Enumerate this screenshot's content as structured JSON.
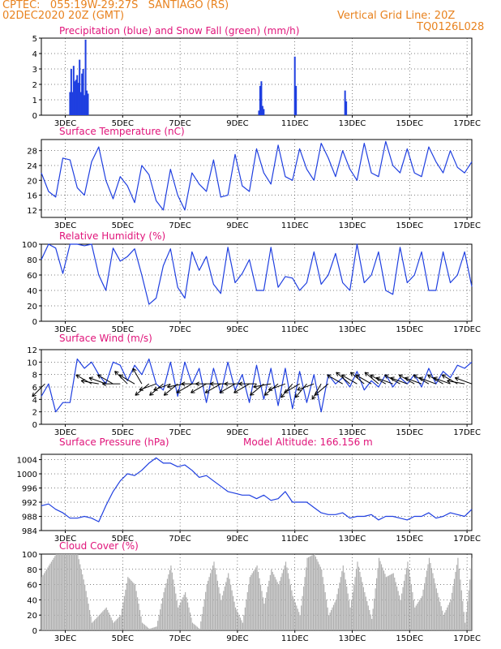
{
  "header": {
    "line1": "CPTEC:   055:19W-29:27S   SANTIAGO (RS)",
    "line2": "02DEC2020 20Z (GMT)",
    "right1": "Vertical Grid Line: 20Z",
    "right2": "TQ0126L028",
    "header_color": "#e8821e"
  },
  "colors": {
    "title": "#e0147a",
    "line": "#1f3fe0",
    "snow": "#20a020",
    "cloud": "#b0b0b0",
    "arrow": "#000000"
  },
  "x_axis": {
    "ticks": [
      "3DEC",
      "5DEC",
      "7DEC",
      "9DEC",
      "11DEC",
      "13DEC",
      "15DEC",
      "17DEC"
    ],
    "start_date": "2020-12-02T00:00Z",
    "end_date": "2020-12-17T00:00Z",
    "vertical_grid_hour": "20Z"
  },
  "chart_data": [
    {
      "id": "precip",
      "type": "bar",
      "title": "Precipitation (blue) and Snow Fall (green) (mm/h)",
      "ylim": [
        0,
        5
      ],
      "yticks": [
        0,
        1,
        2,
        3,
        4,
        5
      ],
      "series": [
        {
          "color": "#1f3fe0",
          "x": [
            "03DEC00Z",
            "03DEC01Z",
            "03DEC02Z",
            "03DEC03Z",
            "03DEC04Z",
            "03DEC05Z",
            "03DEC06Z",
            "03DEC07Z",
            "03DEC08Z",
            "03DEC09Z",
            "03DEC10Z",
            "03DEC11Z",
            "03DEC12Z",
            "03DEC13Z",
            "03DEC14Z",
            "03DEC15Z",
            "09DEC14Z",
            "09DEC15Z",
            "09DEC16Z",
            "09DEC17Z",
            "09DEC18Z",
            "10DEC20Z",
            "10DEC21Z",
            "12DEC14Z",
            "12DEC15Z"
          ],
          "values": [
            1.5,
            3.0,
            1.5,
            3.2,
            2.2,
            2.3,
            2.6,
            2.1,
            3.6,
            1.5,
            2.7,
            3.0,
            1.3,
            4.9,
            1.6,
            1.4,
            0.3,
            1.9,
            2.2,
            0.6,
            0.4,
            3.8,
            1.9,
            1.6,
            0.9
          ]
        }
      ]
    },
    {
      "id": "temperature",
      "type": "line",
      "title": "Surface Temperature (nC)",
      "ylim": [
        10,
        31
      ],
      "yticks": [
        12,
        16,
        20,
        24,
        28
      ],
      "series": [
        {
          "color": "#1f3fe0",
          "x_hours": [
            0,
            6,
            12,
            18,
            24,
            30,
            36,
            42,
            48,
            54,
            60,
            66,
            72,
            78,
            84,
            90,
            96,
            102,
            108,
            114,
            120,
            126,
            132,
            138,
            144,
            150,
            156,
            162,
            168,
            174,
            180,
            186,
            192,
            198,
            204,
            210,
            216,
            222,
            228,
            234,
            240,
            246,
            252,
            258,
            264,
            270,
            276,
            282,
            288,
            294,
            300,
            306,
            312,
            318,
            324,
            330,
            336,
            342,
            348,
            354,
            360
          ],
          "values": [
            22,
            17,
            15.5,
            26,
            25.5,
            18,
            16,
            25,
            29,
            20,
            15,
            21,
            18.5,
            14,
            24,
            21.5,
            14.5,
            12,
            23,
            16,
            12,
            22,
            19,
            17,
            25.5,
            15.5,
            16,
            27,
            18.5,
            17,
            28.5,
            22,
            19,
            29.5,
            21,
            20,
            28.5,
            23,
            20,
            30,
            26,
            21,
            28,
            23,
            20,
            30,
            22,
            21,
            30.5,
            24,
            22,
            28.5,
            22,
            21,
            29,
            25,
            22,
            28,
            23.5,
            22,
            25
          ]
        }
      ]
    },
    {
      "id": "humidity",
      "type": "line",
      "title": "Relative Humidity (%)",
      "ylim": [
        0,
        100
      ],
      "yticks": [
        0,
        20,
        40,
        60,
        80,
        100
      ],
      "series": [
        {
          "color": "#1f3fe0",
          "x_hours": [
            0,
            6,
            12,
            18,
            24,
            30,
            36,
            42,
            48,
            54,
            60,
            66,
            72,
            78,
            84,
            90,
            96,
            102,
            108,
            114,
            120,
            126,
            132,
            138,
            144,
            150,
            156,
            162,
            168,
            174,
            180,
            186,
            192,
            198,
            204,
            210,
            216,
            222,
            228,
            234,
            240,
            246,
            252,
            258,
            264,
            270,
            276,
            282,
            288,
            294,
            300,
            306,
            312,
            318,
            324,
            330,
            336,
            342,
            348,
            354,
            360
          ],
          "values": [
            80,
            100,
            95,
            62,
            100,
            100,
            98,
            100,
            60,
            40,
            95,
            78,
            84,
            94,
            60,
            22,
            30,
            72,
            94,
            44,
            30,
            90,
            66,
            84,
            48,
            36,
            96,
            50,
            62,
            80,
            40,
            40,
            96,
            44,
            58,
            56,
            40,
            50,
            90,
            48,
            60,
            88,
            50,
            40,
            100,
            50,
            60,
            90,
            40,
            35,
            96,
            50,
            60,
            90,
            40,
            40,
            90,
            50,
            60,
            90,
            45
          ]
        }
      ]
    },
    {
      "id": "wind",
      "type": "line",
      "title": "Surface Wind (m/s)",
      "ylim": [
        0,
        12
      ],
      "yticks": [
        0,
        2,
        4,
        6,
        8,
        10,
        12
      ],
      "series": [
        {
          "color": "#1f3fe0",
          "x_hours": [
            0,
            6,
            12,
            18,
            24,
            30,
            36,
            42,
            48,
            54,
            60,
            66,
            72,
            78,
            84,
            90,
            96,
            102,
            108,
            114,
            120,
            126,
            132,
            138,
            144,
            150,
            156,
            162,
            168,
            174,
            180,
            186,
            192,
            198,
            204,
            210,
            216,
            222,
            228,
            234,
            240,
            246,
            252,
            258,
            264,
            270,
            276,
            282,
            288,
            294,
            300,
            306,
            312,
            318,
            324,
            330,
            336,
            342,
            348,
            354,
            360
          ],
          "values": [
            4.5,
            6.5,
            2.0,
            3.5,
            3.5,
            10.5,
            9.0,
            10.0,
            8.0,
            6.5,
            10.0,
            9.5,
            7.0,
            9.5,
            8.0,
            10.5,
            6.5,
            5.5,
            10.0,
            4.5,
            10.0,
            6.5,
            9.0,
            3.5,
            9.0,
            5.0,
            10.0,
            5.5,
            8.0,
            3.5,
            9.5,
            4.0,
            9.0,
            3.0,
            9.0,
            2.5,
            8.5,
            3.5,
            8.0,
            2.0,
            8.0,
            6.5,
            7.5,
            6.0,
            8.5,
            5.5,
            7.0,
            6.0,
            8.0,
            6.0,
            7.5,
            6.5,
            8.0,
            6.0,
            9.0,
            6.5,
            8.5,
            7.5,
            9.5,
            9.0,
            10.0
          ]
        }
      ],
      "arrows": [
        {
          "time_hours": 3,
          "dir_deg": 225
        },
        {
          "time_hours": 42,
          "dir_deg": 300
        },
        {
          "time_hours": 48,
          "dir_deg": 280
        },
        {
          "time_hours": 54,
          "dir_deg": 290
        },
        {
          "time_hours": 60,
          "dir_deg": 300
        },
        {
          "time_hours": 66,
          "dir_deg": 270
        },
        {
          "time_hours": 72,
          "dir_deg": 315
        },
        {
          "time_hours": 78,
          "dir_deg": 300
        },
        {
          "time_hours": 84,
          "dir_deg": 330
        },
        {
          "time_hours": 90,
          "dir_deg": 230
        },
        {
          "time_hours": 96,
          "dir_deg": 250
        },
        {
          "time_hours": 102,
          "dir_deg": 230
        },
        {
          "time_hours": 108,
          "dir_deg": 250
        },
        {
          "time_hours": 114,
          "dir_deg": 230
        },
        {
          "time_hours": 120,
          "dir_deg": 260
        },
        {
          "time_hours": 126,
          "dir_deg": 240
        },
        {
          "time_hours": 132,
          "dir_deg": 270
        },
        {
          "time_hours": 138,
          "dir_deg": 240
        },
        {
          "time_hours": 144,
          "dir_deg": 270
        },
        {
          "time_hours": 150,
          "dir_deg": 240
        },
        {
          "time_hours": 156,
          "dir_deg": 270
        },
        {
          "time_hours": 162,
          "dir_deg": 240
        },
        {
          "time_hours": 168,
          "dir_deg": 270
        },
        {
          "time_hours": 174,
          "dir_deg": 240
        },
        {
          "time_hours": 180,
          "dir_deg": 270
        },
        {
          "time_hours": 186,
          "dir_deg": 230
        },
        {
          "time_hours": 192,
          "dir_deg": 260
        },
        {
          "time_hours": 198,
          "dir_deg": 230
        },
        {
          "time_hours": 204,
          "dir_deg": 250
        },
        {
          "time_hours": 210,
          "dir_deg": 220
        },
        {
          "time_hours": 216,
          "dir_deg": 240
        },
        {
          "time_hours": 222,
          "dir_deg": 220
        },
        {
          "time_hours": 228,
          "dir_deg": 250
        },
        {
          "time_hours": 234,
          "dir_deg": 210
        },
        {
          "time_hours": 240,
          "dir_deg": 230
        },
        {
          "time_hours": 252,
          "dir_deg": 300
        },
        {
          "time_hours": 258,
          "dir_deg": 310
        },
        {
          "time_hours": 264,
          "dir_deg": 300
        },
        {
          "time_hours": 270,
          "dir_deg": 310
        },
        {
          "time_hours": 276,
          "dir_deg": 300
        },
        {
          "time_hours": 282,
          "dir_deg": 310
        },
        {
          "time_hours": 288,
          "dir_deg": 300
        },
        {
          "time_hours": 294,
          "dir_deg": 290
        },
        {
          "time_hours": 300,
          "dir_deg": 300
        },
        {
          "time_hours": 306,
          "dir_deg": 290
        },
        {
          "time_hours": 312,
          "dir_deg": 300
        },
        {
          "time_hours": 318,
          "dir_deg": 290
        },
        {
          "time_hours": 324,
          "dir_deg": 300
        },
        {
          "time_hours": 330,
          "dir_deg": 290
        },
        {
          "time_hours": 336,
          "dir_deg": 300
        },
        {
          "time_hours": 342,
          "dir_deg": 290
        },
        {
          "time_hours": 348,
          "dir_deg": 300
        },
        {
          "time_hours": 354,
          "dir_deg": 280
        },
        {
          "time_hours": 360,
          "dir_deg": 290
        }
      ]
    },
    {
      "id": "pressure",
      "type": "line",
      "title": "Surface Pressure (hPa)",
      "subtitle": "Model Altitude: 166.156 m",
      "ylim": [
        984,
        1005.5
      ],
      "yticks": [
        984,
        988,
        992,
        996,
        1000,
        1004
      ],
      "series": [
        {
          "color": "#1f3fe0",
          "x_hours": [
            0,
            6,
            12,
            18,
            24,
            30,
            36,
            42,
            48,
            54,
            60,
            66,
            72,
            78,
            84,
            90,
            96,
            102,
            108,
            114,
            120,
            126,
            132,
            138,
            144,
            150,
            156,
            162,
            168,
            174,
            180,
            186,
            192,
            198,
            204,
            210,
            216,
            222,
            228,
            234,
            240,
            246,
            252,
            258,
            264,
            270,
            276,
            282,
            288,
            294,
            300,
            306,
            312,
            318,
            324,
            330,
            336,
            342,
            348,
            354,
            360
          ],
          "values": [
            991,
            991.5,
            990,
            989,
            987.5,
            987.5,
            988,
            987.5,
            986.5,
            991,
            995,
            998,
            1000,
            999.5,
            1001,
            1003,
            1004.5,
            1003,
            1003,
            1002,
            1002.5,
            1001,
            999,
            999.5,
            998,
            996.5,
            995,
            994.5,
            994,
            994,
            993,
            994,
            992.5,
            993,
            995,
            992,
            992,
            992,
            990.5,
            989,
            988.5,
            988.5,
            989,
            987.5,
            988,
            988,
            988.5,
            987,
            988,
            988,
            987.5,
            987,
            988,
            988,
            989,
            987.5,
            988,
            989,
            988.5,
            988,
            990
          ]
        }
      ]
    },
    {
      "id": "cloud",
      "type": "area",
      "title": "Cloud Cover (%)",
      "ylim": [
        0,
        100
      ],
      "yticks": [
        0,
        20,
        40,
        60,
        80,
        100
      ],
      "series": [
        {
          "color": "#b0b0b0",
          "x_hours": [
            0,
            6,
            12,
            18,
            24,
            30,
            36,
            42,
            48,
            54,
            60,
            66,
            72,
            78,
            84,
            90,
            96,
            102,
            108,
            114,
            120,
            126,
            132,
            138,
            144,
            150,
            156,
            162,
            168,
            174,
            180,
            186,
            192,
            198,
            204,
            210,
            216,
            222,
            228,
            234,
            240,
            246,
            252,
            258,
            264,
            270,
            276,
            282,
            288,
            294,
            300,
            306,
            312,
            318,
            324,
            330,
            336,
            342,
            348,
            354,
            360
          ],
          "values": [
            70,
            85,
            100,
            100,
            100,
            100,
            60,
            10,
            20,
            30,
            10,
            20,
            70,
            60,
            10,
            2,
            5,
            50,
            85,
            30,
            50,
            10,
            2,
            60,
            90,
            40,
            75,
            30,
            10,
            70,
            85,
            35,
            80,
            60,
            90,
            45,
            20,
            95,
            100,
            80,
            20,
            40,
            85,
            30,
            90,
            50,
            15,
            95,
            70,
            75,
            40,
            90,
            30,
            45,
            95,
            55,
            20,
            40,
            95,
            10,
            95
          ]
        }
      ]
    }
  ]
}
